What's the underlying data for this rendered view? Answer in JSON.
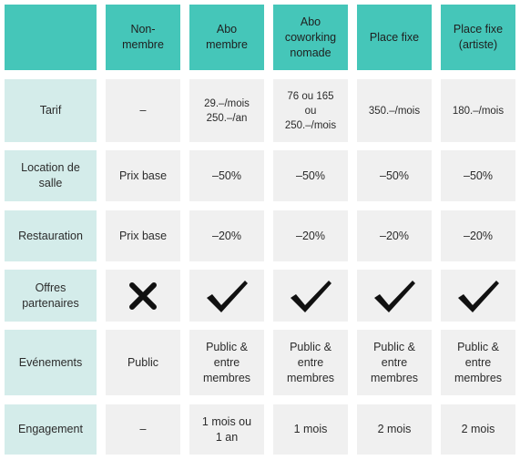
{
  "columns": [
    "",
    "Non-\nmembre",
    "Abo\nmembre",
    "Abo\ncoworking\nnomade",
    "Place fixe",
    "Place fixe\n(artiste)"
  ],
  "rows": [
    {
      "label": "Tarif",
      "cells": [
        "–",
        "29.–/mois\n250.–/an",
        "76 ou 165\nou\n250.–/mois",
        "350.–/mois",
        "180.–/mois"
      ]
    },
    {
      "label": "Location de\nsalle",
      "cells": [
        "Prix base",
        "–50%",
        "–50%",
        "–50%",
        "–50%"
      ]
    },
    {
      "label": "Restauration",
      "cells": [
        "Prix base",
        "–20%",
        "–20%",
        "–20%",
        "–20%"
      ]
    },
    {
      "label": "Offres\npartenaires",
      "cells_icons": [
        "cross-icon",
        "check-icon",
        "check-icon",
        "check-icon",
        "check-icon"
      ]
    },
    {
      "label": "Evénements",
      "cells": [
        "Public",
        "Public &\nentre\nmembres",
        "Public &\nentre\nmembres",
        "Public &\nentre\nmembres",
        "Public &\nentre\nmembres"
      ]
    },
    {
      "label": "Engagement",
      "cells": [
        "–",
        "1 mois ou\n1 an",
        "1 mois",
        "2 mois",
        "2 mois"
      ]
    }
  ],
  "colors": {
    "header": "#45c6b9",
    "row_label": "#d4ecea",
    "cell": "#f0f0f0"
  }
}
